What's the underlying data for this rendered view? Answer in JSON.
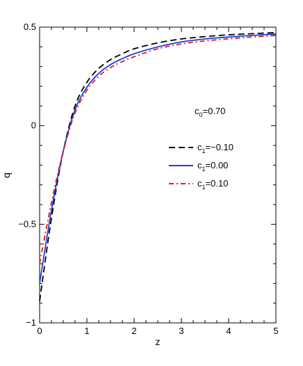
{
  "chart_data": {
    "type": "line",
    "xlabel": "z",
    "ylabel": "q",
    "xlim": [
      0,
      5
    ],
    "ylim": [
      -1,
      0.5
    ],
    "xticks": [
      0,
      1,
      2,
      3,
      4,
      5
    ],
    "xtick_labels": [
      "0",
      "1",
      "2",
      "3",
      "4",
      "5"
    ],
    "yticks": [
      -1,
      -0.5,
      0,
      0.5
    ],
    "ytick_labels": [
      "−1",
      "−0.5",
      "0",
      "0.5"
    ],
    "grid": false,
    "legend_placement": "center-right",
    "annotation": {
      "main": "c",
      "sub": "0",
      "rest": "=0.70"
    },
    "x": [
      0,
      0.25,
      0.5,
      0.75,
      1.0,
      1.25,
      1.5,
      1.75,
      2.0,
      2.5,
      3.0,
      3.5,
      4.0,
      4.5,
      5.0
    ],
    "series": [
      {
        "name": "c1=-0.10",
        "label_main": "c",
        "label_sub": "1",
        "label_rest": "=−0.10",
        "color": "#000000",
        "dash": "9,5",
        "values": [
          -0.89,
          -0.47,
          -0.13,
          0.1,
          0.22,
          0.29,
          0.335,
          0.365,
          0.39,
          0.42,
          0.44,
          0.452,
          0.461,
          0.467,
          0.472
        ]
      },
      {
        "name": "c1=0.00",
        "label_main": "c",
        "label_sub": "1",
        "label_rest": "=0.00",
        "color": "#1f3fd6",
        "dash": "",
        "values": [
          -0.8,
          -0.43,
          -0.13,
          0.08,
          0.195,
          0.265,
          0.31,
          0.34,
          0.365,
          0.4,
          0.425,
          0.44,
          0.45,
          0.458,
          0.465
        ]
      },
      {
        "name": "c1=0.10",
        "label_main": "c",
        "label_sub": "1",
        "label_rest": "=0.10",
        "color": "#e01818",
        "dash": "7,4,2,4",
        "values": [
          -0.7,
          -0.39,
          -0.13,
          0.065,
          0.18,
          0.25,
          0.295,
          0.325,
          0.35,
          0.39,
          0.415,
          0.43,
          0.441,
          0.45,
          0.458
        ]
      }
    ]
  }
}
